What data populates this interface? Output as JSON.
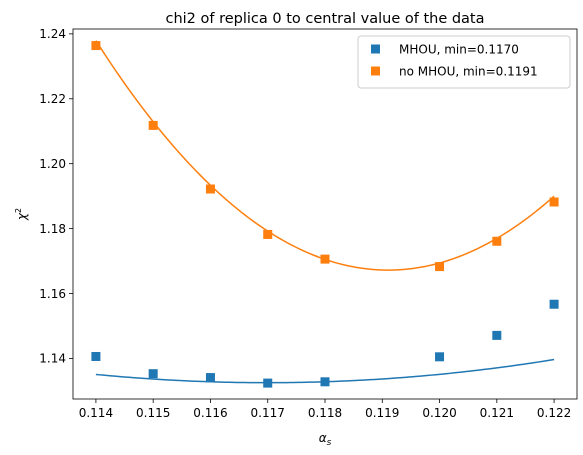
{
  "chart_data": {
    "type": "scatter",
    "title": "chi2 of replica 0 to central value of the data",
    "xlabel": "α",
    "xlabel_sub": "s",
    "ylabel": "χ",
    "ylabel_sup": "2",
    "xlim": [
      0.1136,
      0.1224
    ],
    "ylim": [
      1.1275,
      1.2415
    ],
    "xticks": [
      "0.114",
      "0.115",
      "0.116",
      "0.117",
      "0.118",
      "0.119",
      "0.120",
      "0.121",
      "0.122"
    ],
    "yticks": [
      "1.14",
      "1.16",
      "1.18",
      "1.20",
      "1.22",
      "1.24"
    ],
    "legend_position": "top-right",
    "series": [
      {
        "name": "MHOU, min=0.1170",
        "color": "#1f77b4",
        "marker": "square",
        "x": [
          0.114,
          0.115,
          0.116,
          0.117,
          0.118,
          0.12,
          0.121,
          0.122
        ],
        "y": [
          1.1406,
          1.1353,
          1.1341,
          1.1324,
          1.1328,
          1.1405,
          1.1471,
          1.1567
        ],
        "fit": {
          "a": 284.0,
          "b": -66.45,
          "c": 5.0195
        }
      },
      {
        "name": "no MHOU, min=0.1191",
        "color": "#ff7f0e",
        "marker": "square",
        "x": [
          0.114,
          0.115,
          0.116,
          0.117,
          0.118,
          0.12,
          0.121,
          0.122
        ],
        "y": [
          1.2364,
          1.2118,
          1.1922,
          1.1782,
          1.1706,
          1.1683,
          1.1761,
          1.1882
        ],
        "fit": {
          "a": 2715.0,
          "b": -646.73,
          "c": 39.681
        }
      }
    ]
  }
}
